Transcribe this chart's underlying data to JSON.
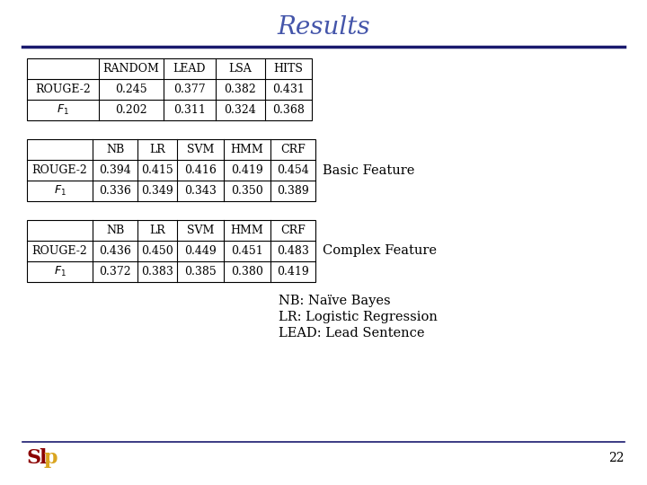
{
  "title": "Results",
  "title_color": "#4455aa",
  "title_fontsize": 20,
  "background_color": "#ffffff",
  "line_color": "#1a1a6e",
  "table1": {
    "headers": [
      "",
      "RANDOM",
      "LEAD",
      "LSA",
      "HITS"
    ],
    "rows": [
      [
        "ROUGE-2",
        "0.245",
        "0.377",
        "0.382",
        "0.431"
      ],
      [
        "F1",
        "0.202",
        "0.311",
        "0.324",
        "0.368"
      ]
    ]
  },
  "table2": {
    "label": "Basic Feature",
    "headers": [
      "",
      "NB",
      "LR",
      "SVM",
      "HMM",
      "CRF"
    ],
    "rows": [
      [
        "ROUGE-2",
        "0.394",
        "0.415",
        "0.416",
        "0.419",
        "0.454"
      ],
      [
        "F1",
        "0.336",
        "0.349",
        "0.343",
        "0.350",
        "0.389"
      ]
    ]
  },
  "table3": {
    "label": "Complex Feature",
    "headers": [
      "",
      "NB",
      "LR",
      "SVM",
      "HMM",
      "CRF"
    ],
    "rows": [
      [
        "ROUGE-2",
        "0.436",
        "0.450",
        "0.449",
        "0.451",
        "0.483"
      ],
      [
        "F1",
        "0.372",
        "0.383",
        "0.385",
        "0.380",
        "0.419"
      ]
    ]
  },
  "legend_lines": [
    "NB: Naïve Bayes",
    "LR: Logistic Regression",
    "LEAD: Lead Sentence"
  ],
  "legend_fontsize": 10.5,
  "footer_number": "22"
}
